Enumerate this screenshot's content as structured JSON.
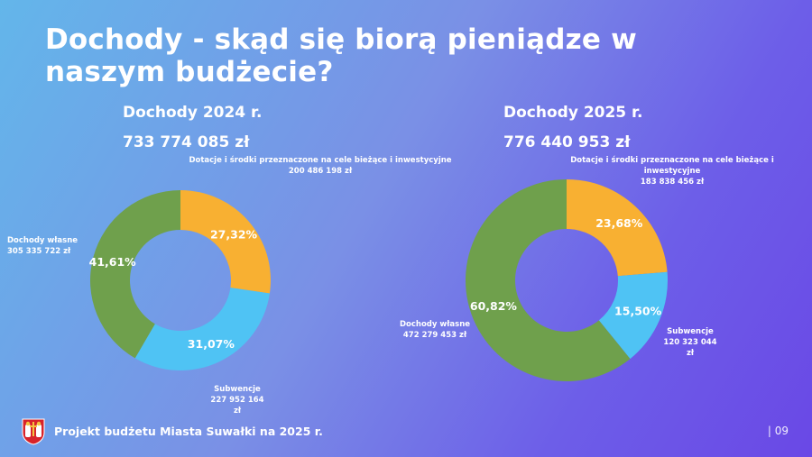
{
  "title": "Dochody - skąd się biorą pieniądze w naszym budżecie?",
  "footer": {
    "text": "Projekt budżetu Miasta Suwałki na 2025 r.",
    "page": "| 09"
  },
  "colors": {
    "dotacje": "#f8b032",
    "subwencje": "#4fc3f4",
    "wlasne": "#6fa04c"
  },
  "chart_data": [
    {
      "type": "pie",
      "title": "Dochody 2024 r.",
      "total": "733 774 085 zł",
      "series": [
        {
          "key": "dotacje",
          "name": "Dotacje i środki przeznaczone na cele bieżące i inwestycyjne",
          "value": 200486198,
          "amount": "200 486 198 zł",
          "percent": 27.32,
          "percent_label": "27,32%"
        },
        {
          "key": "subwencje",
          "name": "Subwencje",
          "value": 227952164,
          "amount": "227 952 164 zł",
          "percent": 31.07,
          "percent_label": "31,07%"
        },
        {
          "key": "wlasne",
          "name": "Dochody własne",
          "value": 305335722,
          "amount": "305 335 722 zł",
          "percent": 41.61,
          "percent_label": "41,61%"
        }
      ]
    },
    {
      "type": "pie",
      "title": "Dochody 2025 r.",
      "total": "776 440 953 zł",
      "series": [
        {
          "key": "dotacje",
          "name": "Dotacje i środki przeznaczone na cele bieżące i inwestycyjne",
          "value": 183838456,
          "amount": "183 838 456 zł",
          "percent": 23.68,
          "percent_label": "23,68%"
        },
        {
          "key": "subwencje",
          "name": "Subwencje",
          "value": 120323044,
          "amount": "120 323 044 zł",
          "percent": 15.5,
          "percent_label": "15,50%"
        },
        {
          "key": "wlasne",
          "name": "Dochody własne",
          "value": 472279453,
          "amount": "472 279 453 zł",
          "percent": 60.82,
          "percent_label": "60,82%"
        }
      ]
    }
  ]
}
